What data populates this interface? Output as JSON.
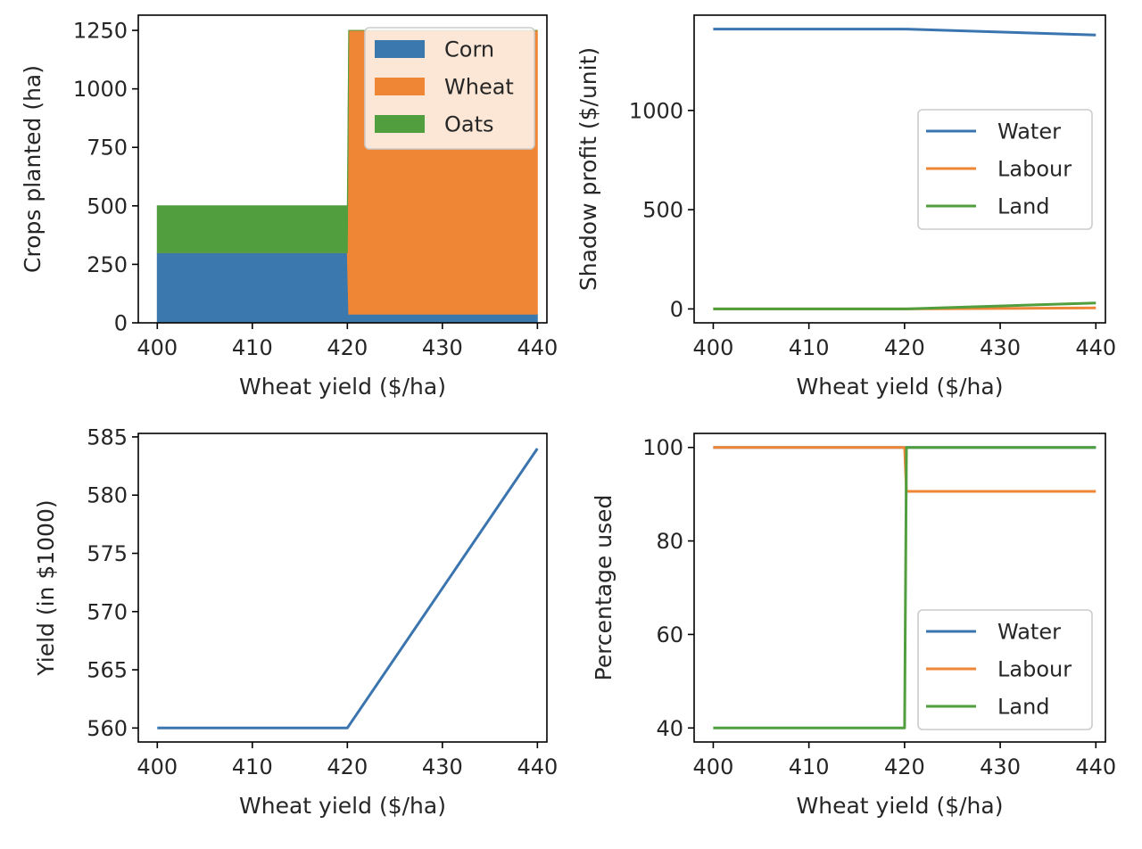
{
  "chart_data": [
    {
      "type": "area",
      "stacked": true,
      "step": true,
      "x": [
        400,
        420,
        440
      ],
      "series": [
        {
          "name": "Corn",
          "values": [
            300,
            37.5,
            37.5
          ]
        },
        {
          "name": "Wheat",
          "values": [
            0,
            1212.5,
            1212.5
          ]
        },
        {
          "name": "Oats",
          "values": [
            200,
            0,
            0
          ]
        }
      ],
      "xlabel": "Wheat yield ($/ha)",
      "ylabel": "Crops planted (ha)",
      "xlim": [
        398,
        441
      ],
      "ylim": [
        0,
        1315
      ],
      "xticks": [
        "400",
        "410",
        "420",
        "430",
        "440"
      ],
      "yticks": [
        "0",
        "250",
        "500",
        "750",
        "1000",
        "1250"
      ],
      "legend_position": "top-right",
      "grid": false
    },
    {
      "type": "line",
      "x": [
        400,
        420,
        440
      ],
      "series": [
        {
          "name": "Water",
          "values": [
            1410,
            1410,
            1380
          ]
        },
        {
          "name": "Labour",
          "values": [
            0,
            0,
            5
          ]
        },
        {
          "name": "Land",
          "values": [
            0,
            0,
            30
          ]
        }
      ],
      "xlabel": "Wheat yield ($/ha)",
      "ylabel": "Shadow profit ($/unit)",
      "xlim": [
        398,
        441
      ],
      "ylim": [
        -70,
        1480
      ],
      "xticks": [
        "400",
        "410",
        "420",
        "430",
        "440"
      ],
      "yticks": [
        "0",
        "500",
        "1000"
      ],
      "legend_position": "center-right",
      "grid": false
    },
    {
      "type": "line",
      "x": [
        400,
        420,
        440
      ],
      "series": [
        {
          "name": "",
          "values": [
            560,
            560,
            584
          ]
        }
      ],
      "xlabel": "Wheat yield ($/ha)",
      "ylabel": "Yield (in $1000)",
      "xlim": [
        398,
        441
      ],
      "ylim": [
        558.8,
        585.3
      ],
      "xticks": [
        "400",
        "410",
        "420",
        "430",
        "440"
      ],
      "yticks": [
        "560",
        "565",
        "570",
        "575",
        "580",
        "585"
      ],
      "grid": false
    },
    {
      "type": "line",
      "x": [
        400,
        420,
        420.2,
        440
      ],
      "series": [
        {
          "name": "Water",
          "values": [
            100,
            100,
            100,
            100
          ]
        },
        {
          "name": "Labour",
          "values": [
            100,
            100,
            90.6,
            90.6
          ]
        },
        {
          "name": "Land",
          "values": [
            40,
            40,
            100,
            100
          ]
        }
      ],
      "xlabel": "Wheat yield ($/ha)",
      "ylabel": "Percentage used",
      "xlim": [
        398,
        441
      ],
      "ylim": [
        37,
        103
      ],
      "xticks": [
        "400",
        "410",
        "420",
        "430",
        "440"
      ],
      "yticks": [
        "40",
        "60",
        "80",
        "100"
      ],
      "legend_position": "lower-right",
      "grid": false
    }
  ],
  "colors": {
    "Corn": "#3a78ad",
    "Wheat": "#ef8636",
    "Oats": "#519e3e",
    "Water": "#3b75af",
    "Labour": "#ef8636",
    "Land": "#519e3e",
    "Yield": "#3b75af"
  }
}
